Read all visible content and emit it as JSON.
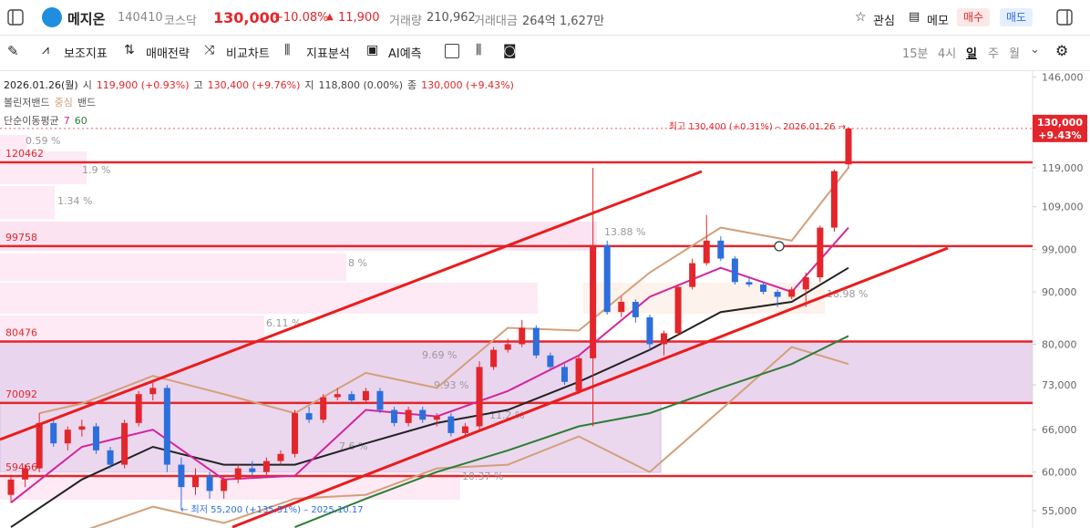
{
  "header": {
    "name": "메지온",
    "code": "140410",
    "market": "코스닥",
    "price": "130,000",
    "change_pct": "+10.08%",
    "arrow": "▲",
    "change": "11,900",
    "volume_label": "거래량",
    "volume": "210,962",
    "amount_label": "거래대금",
    "amount": "264억 1,627만",
    "watch": "관심",
    "memo": "메모",
    "buy": "매수",
    "sell": "매도"
  },
  "toolbar": {
    "tools": [
      "보조지표",
      "매매전략",
      "비교차트",
      "지표분석",
      "AI예측"
    ],
    "periods": [
      "15분",
      "4시",
      "일",
      "주",
      "월"
    ]
  },
  "info": {
    "date": "2026.01.26(월)",
    "open_label": "시",
    "open": "119,900 (+0.93%)",
    "high_label": "고",
    "high": "130,400 (+9.76%)",
    "low_label": "지",
    "low": "118,800 (0.00%)",
    "close_label": "종",
    "close": "130,000 (+9.43%)",
    "bb": "볼린저밴드",
    "bb_center": "중심",
    "bb_band": "밴드",
    "sma": "단순이동평균",
    "sma_short": "7",
    "sma_long": "60"
  },
  "chart_data": {
    "type": "candlestick",
    "log_scale": true,
    "up_color": "#e3262b",
    "down_color": "#2c6fdc",
    "ylim": [
      52900,
      147900
    ],
    "yticks": [
      {
        "value": 146000,
        "label": "146,000"
      },
      {
        "value": 119000,
        "label": "119,000"
      },
      {
        "value": 109000,
        "label": "109,000"
      },
      {
        "value": 99000,
        "label": "99,000"
      },
      {
        "value": 90000,
        "label": "90,000"
      },
      {
        "value": 80000,
        "label": "80,000"
      },
      {
        "value": 73000,
        "label": "73,000"
      },
      {
        "value": 66000,
        "label": "66,000"
      },
      {
        "value": 60000,
        "label": "60,000"
      },
      {
        "value": 55000,
        "label": "55,000"
      }
    ],
    "ohlc": [
      [
        57000,
        59500,
        56000,
        59000
      ],
      [
        59000,
        61000,
        58000,
        60500
      ],
      [
        60500,
        68500,
        60000,
        67000
      ],
      [
        67000,
        67500,
        63500,
        64000
      ],
      [
        64000,
        66500,
        63000,
        66000
      ],
      [
        66000,
        67500,
        65000,
        66500
      ],
      [
        66500,
        67000,
        62500,
        63000
      ],
      [
        63000,
        63500,
        60500,
        61000
      ],
      [
        61000,
        67500,
        60500,
        67000
      ],
      [
        67000,
        72000,
        66500,
        71500
      ],
      [
        71500,
        73500,
        70500,
        72500
      ],
      [
        72500,
        73000,
        60000,
        61000
      ],
      [
        61000,
        62000,
        55200,
        58000
      ],
      [
        58000,
        60500,
        57000,
        59500
      ],
      [
        59500,
        60000,
        56500,
        57500
      ],
      [
        57500,
        59500,
        56500,
        59000
      ],
      [
        59000,
        61000,
        58500,
        60500
      ],
      [
        60500,
        61500,
        59500,
        60000
      ],
      [
        60000,
        62000,
        59500,
        61500
      ],
      [
        61500,
        63000,
        61000,
        62500
      ],
      [
        62500,
        69000,
        62000,
        68500
      ],
      [
        68500,
        69500,
        67000,
        67500
      ],
      [
        67500,
        71500,
        67000,
        71000
      ],
      [
        71000,
        72500,
        70500,
        71500
      ],
      [
        71500,
        72000,
        70000,
        70500
      ],
      [
        70500,
        72500,
        70000,
        72000
      ],
      [
        72000,
        72500,
        68500,
        69000
      ],
      [
        69000,
        69500,
        66500,
        67000
      ],
      [
        67000,
        69500,
        66500,
        69000
      ],
      [
        69000,
        69500,
        67000,
        67500
      ],
      [
        67500,
        68500,
        66500,
        68000
      ],
      [
        68000,
        68500,
        65000,
        65500
      ],
      [
        65500,
        67000,
        65000,
        66500
      ],
      [
        66500,
        77000,
        66000,
        76000
      ],
      [
        76000,
        79500,
        75500,
        79000
      ],
      [
        79000,
        81000,
        78500,
        80000
      ],
      [
        80000,
        84500,
        79500,
        83000
      ],
      [
        83000,
        83500,
        77500,
        78000
      ],
      [
        78000,
        78500,
        75500,
        76000
      ],
      [
        76000,
        76500,
        73000,
        73500
      ],
      [
        72000,
        78000,
        71500,
        77500
      ],
      [
        77500,
        119000,
        66500,
        100000
      ],
      [
        100000,
        101000,
        85500,
        86000
      ],
      [
        86000,
        89000,
        85000,
        88000
      ],
      [
        88000,
        88500,
        84000,
        85000
      ],
      [
        85000,
        85500,
        79000,
        80000
      ],
      [
        80000,
        82500,
        78000,
        82000
      ],
      [
        82000,
        91500,
        81500,
        91000
      ],
      [
        91000,
        97000,
        90500,
        96000
      ],
      [
        96000,
        107000,
        95500,
        101000
      ],
      [
        101000,
        102000,
        96500,
        97000
      ],
      [
        97000,
        97500,
        91500,
        92000
      ],
      [
        92000,
        93000,
        91000,
        91500
      ],
      [
        91500,
        92000,
        89500,
        90000
      ],
      [
        90000,
        90500,
        87000,
        89000
      ],
      [
        89000,
        91000,
        88500,
        90500
      ],
      [
        90500,
        94000,
        87000,
        93000
      ],
      [
        93000,
        104500,
        92000,
        104000
      ],
      [
        104000,
        118500,
        103000,
        118100
      ],
      [
        119900,
        130400,
        118800,
        130000
      ]
    ],
    "lines": [
      {
        "color": "#d2a07a",
        "x": [
          2,
          5,
          10,
          15,
          20,
          25,
          30,
          35,
          40,
          45,
          50,
          55,
          59
        ],
        "values": [
          68500,
          70000,
          74500,
          71500,
          68500,
          75000,
          72500,
          83000,
          82500,
          94000,
          104000,
          101000,
          119000
        ]
      },
      {
        "color": "#d2a07a",
        "x": [
          2,
          5,
          10,
          15,
          20,
          25,
          30,
          35,
          40,
          45,
          50,
          55,
          59
        ],
        "values": [
          52000,
          52500,
          55500,
          53500,
          56500,
          57000,
          60500,
          61000,
          65000,
          60000,
          69000,
          79500,
          76500
        ]
      },
      {
        "color": "#222222",
        "x": [
          0,
          5,
          10,
          15,
          20,
          25,
          30,
          35,
          40,
          45,
          50,
          55,
          59
        ],
        "values": [
          53000,
          59000,
          63500,
          61000,
          61000,
          64000,
          67000,
          69000,
          73500,
          79000,
          86000,
          88000,
          95000
        ]
      },
      {
        "color": "#d4259c",
        "x": [
          0,
          5,
          10,
          15,
          20,
          25,
          30,
          35,
          40,
          45,
          50,
          55,
          59
        ],
        "values": [
          56000,
          63500,
          66000,
          59000,
          59500,
          69000,
          68000,
          72000,
          78000,
          89000,
          95000,
          90000,
          104000
        ]
      },
      {
        "color": "#2e7d32",
        "x": [
          20,
          25,
          30,
          35,
          40,
          45,
          50,
          55,
          59
        ],
        "values": [
          53000,
          56500,
          60000,
          63000,
          66500,
          68500,
          72500,
          76500,
          81500
        ]
      }
    ],
    "levels": [
      120462,
      99758,
      80476,
      70092,
      59466
    ],
    "level_color": "#e3262b",
    "profile_labels": [
      "0.59 %",
      "1.9 %",
      "1.34 %",
      "13.88 %",
      "8 %",
      "6.11 %",
      "9.69 %",
      "9.93 %",
      "11.2 %",
      "7.6 %",
      "10.37 %",
      "18.98 %"
    ],
    "high_note": "최고 130,400 (+0.31%) – 2026.01.26 →",
    "low_note": "← 최저 55,200 (+135.51%) – 2025.10.17",
    "last_price": {
      "value": 130000,
      "label": "130,000"
    },
    "last_change": "+9.43%"
  }
}
